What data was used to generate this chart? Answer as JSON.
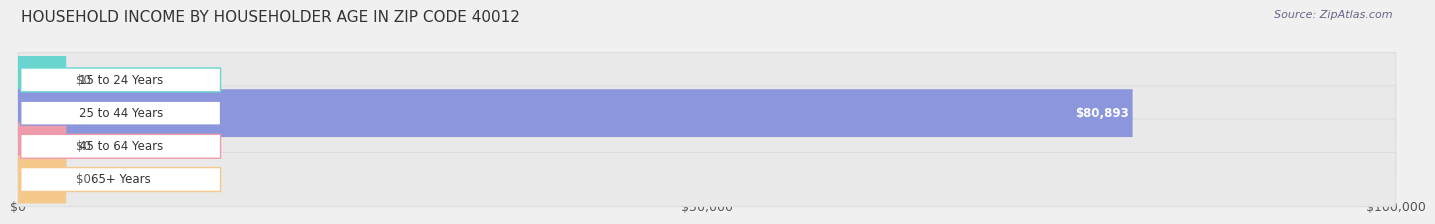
{
  "title": "HOUSEHOLD INCOME BY HOUSEHOLDER AGE IN ZIP CODE 40012",
  "source_text": "Source: ZipAtlas.com",
  "categories": [
    "15 to 24 Years",
    "25 to 44 Years",
    "45 to 64 Years",
    "65+ Years"
  ],
  "values": [
    0,
    80893,
    0,
    0
  ],
  "bar_colors": [
    "#68d5cf",
    "#8b96dc",
    "#f09bab",
    "#f5c98a"
  ],
  "label_bg_colors": [
    "#ffffff",
    "#ffffff",
    "#ffffff",
    "#ffffff"
  ],
  "bar_label_values": [
    "$0",
    "$80,893",
    "$0",
    "$0"
  ],
  "xlim": [
    0,
    100000
  ],
  "xticks": [
    0,
    50000,
    100000
  ],
  "xtick_labels": [
    "$0",
    "$50,000",
    "$100,000"
  ],
  "bg_color": "#f0f0f0",
  "row_bg_color": "#e8e8e8",
  "title_fontsize": 11,
  "axis_fontsize": 9,
  "bar_label_fontsize": 8.5,
  "category_fontsize": 8.5,
  "stub_value": 3500
}
